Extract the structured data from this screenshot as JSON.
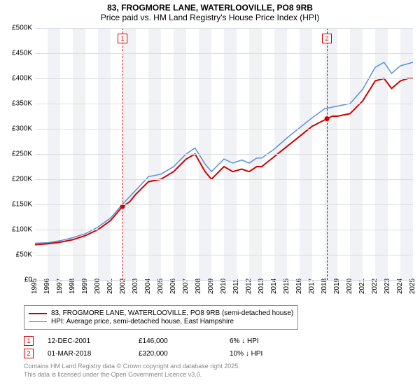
{
  "title": "83, FROGMORE LANE, WATERLOOVILLE, PO8 9RB",
  "subtitle": "Price paid vs. HM Land Registry's House Price Index (HPI)",
  "chart": {
    "type": "line",
    "background_color": "#ffffff",
    "plot_band_color": "#f0f2f5",
    "grid_color": "#d9dde2",
    "ylim": [
      0,
      500000
    ],
    "ytick_step": 50000,
    "y_tick_labels": [
      "£0",
      "£50K",
      "£100K",
      "£150K",
      "£200K",
      "£250K",
      "£300K",
      "£350K",
      "£400K",
      "£450K",
      "£500K"
    ],
    "xlim": [
      1995,
      2025
    ],
    "x_ticks": [
      1995,
      1996,
      1997,
      1998,
      1999,
      2000,
      2001,
      2002,
      2003,
      2004,
      2005,
      2006,
      2007,
      2008,
      2009,
      2010,
      2011,
      2012,
      2013,
      2014,
      2015,
      2016,
      2017,
      2018,
      2019,
      2020,
      2021,
      2022,
      2023,
      2024,
      2025
    ],
    "series": [
      {
        "id": "property",
        "label": "83, FROGMORE LANE, WATERLOOVILLE, PO8 9RB (semi-detached house)",
        "color": "#d10000",
        "line_width": 2,
        "points": [
          [
            1995,
            70000
          ],
          [
            1996,
            72000
          ],
          [
            1997,
            75000
          ],
          [
            1998,
            80000
          ],
          [
            1999,
            88000
          ],
          [
            2000,
            100000
          ],
          [
            2001,
            118000
          ],
          [
            2001.95,
            146000
          ],
          [
            2002.5,
            155000
          ],
          [
            2003,
            170000
          ],
          [
            2004,
            195000
          ],
          [
            2005,
            200000
          ],
          [
            2006,
            215000
          ],
          [
            2007,
            240000
          ],
          [
            2007.7,
            250000
          ],
          [
            2008.5,
            215000
          ],
          [
            2009,
            200000
          ],
          [
            2009.6,
            215000
          ],
          [
            2010,
            225000
          ],
          [
            2010.7,
            215000
          ],
          [
            2011.4,
            220000
          ],
          [
            2012,
            215000
          ],
          [
            2012.6,
            225000
          ],
          [
            2013,
            225000
          ],
          [
            2014,
            245000
          ],
          [
            2015,
            265000
          ],
          [
            2016,
            285000
          ],
          [
            2017,
            305000
          ],
          [
            2018.17,
            320000
          ],
          [
            2018.6,
            325000
          ],
          [
            2019,
            325000
          ],
          [
            2020,
            330000
          ],
          [
            2021,
            355000
          ],
          [
            2022,
            395000
          ],
          [
            2022.7,
            400000
          ],
          [
            2023.3,
            380000
          ],
          [
            2024,
            395000
          ],
          [
            2024.6,
            400000
          ],
          [
            2025,
            400000
          ]
        ]
      },
      {
        "id": "hpi",
        "label": "HPI: Average price, semi-detached house, East Hampshire",
        "color": "#5b8fd6",
        "line_width": 1.5,
        "points": [
          [
            1995,
            73000
          ],
          [
            1996,
            74000
          ],
          [
            1997,
            78000
          ],
          [
            1998,
            84000
          ],
          [
            1999,
            92000
          ],
          [
            2000,
            105000
          ],
          [
            2001,
            123000
          ],
          [
            2002,
            152000
          ],
          [
            2003,
            178000
          ],
          [
            2004,
            205000
          ],
          [
            2005,
            210000
          ],
          [
            2006,
            225000
          ],
          [
            2007,
            250000
          ],
          [
            2007.7,
            262000
          ],
          [
            2008.5,
            230000
          ],
          [
            2009,
            215000
          ],
          [
            2009.6,
            230000
          ],
          [
            2010,
            240000
          ],
          [
            2010.7,
            232000
          ],
          [
            2011.4,
            238000
          ],
          [
            2012,
            232000
          ],
          [
            2012.6,
            242000
          ],
          [
            2013,
            242000
          ],
          [
            2014,
            260000
          ],
          [
            2015,
            282000
          ],
          [
            2016,
            302000
          ],
          [
            2017,
            322000
          ],
          [
            2018,
            340000
          ],
          [
            2019,
            345000
          ],
          [
            2020,
            350000
          ],
          [
            2021,
            378000
          ],
          [
            2022,
            422000
          ],
          [
            2022.7,
            432000
          ],
          [
            2023.3,
            410000
          ],
          [
            2024,
            425000
          ],
          [
            2025,
            432000
          ]
        ]
      }
    ],
    "markers": [
      {
        "id": "1",
        "x": 2001.95,
        "color": "#d10000"
      },
      {
        "id": "2",
        "x": 2018.17,
        "color": "#d10000"
      }
    ]
  },
  "legend": {
    "items": [
      {
        "color": "#d10000",
        "label": "83, FROGMORE LANE, WATERLOOVILLE, PO8 9RB (semi-detached house)",
        "thick": 2
      },
      {
        "color": "#5b8fd6",
        "label": "HPI: Average price, semi-detached house, East Hampshire",
        "thick": 1.5
      }
    ]
  },
  "transactions": [
    {
      "badge": "1",
      "badge_color": "#d10000",
      "date": "12-DEC-2001",
      "price": "£146,000",
      "delta": "6% ↓ HPI"
    },
    {
      "badge": "2",
      "badge_color": "#d10000",
      "date": "01-MAR-2018",
      "price": "£320,000",
      "delta": "10% ↓ HPI"
    }
  ],
  "attribution": {
    "line1": "Contains HM Land Registry data © Crown copyright and database right 2025.",
    "line2": "This data is licensed under the Open Government Licence v3.0."
  }
}
